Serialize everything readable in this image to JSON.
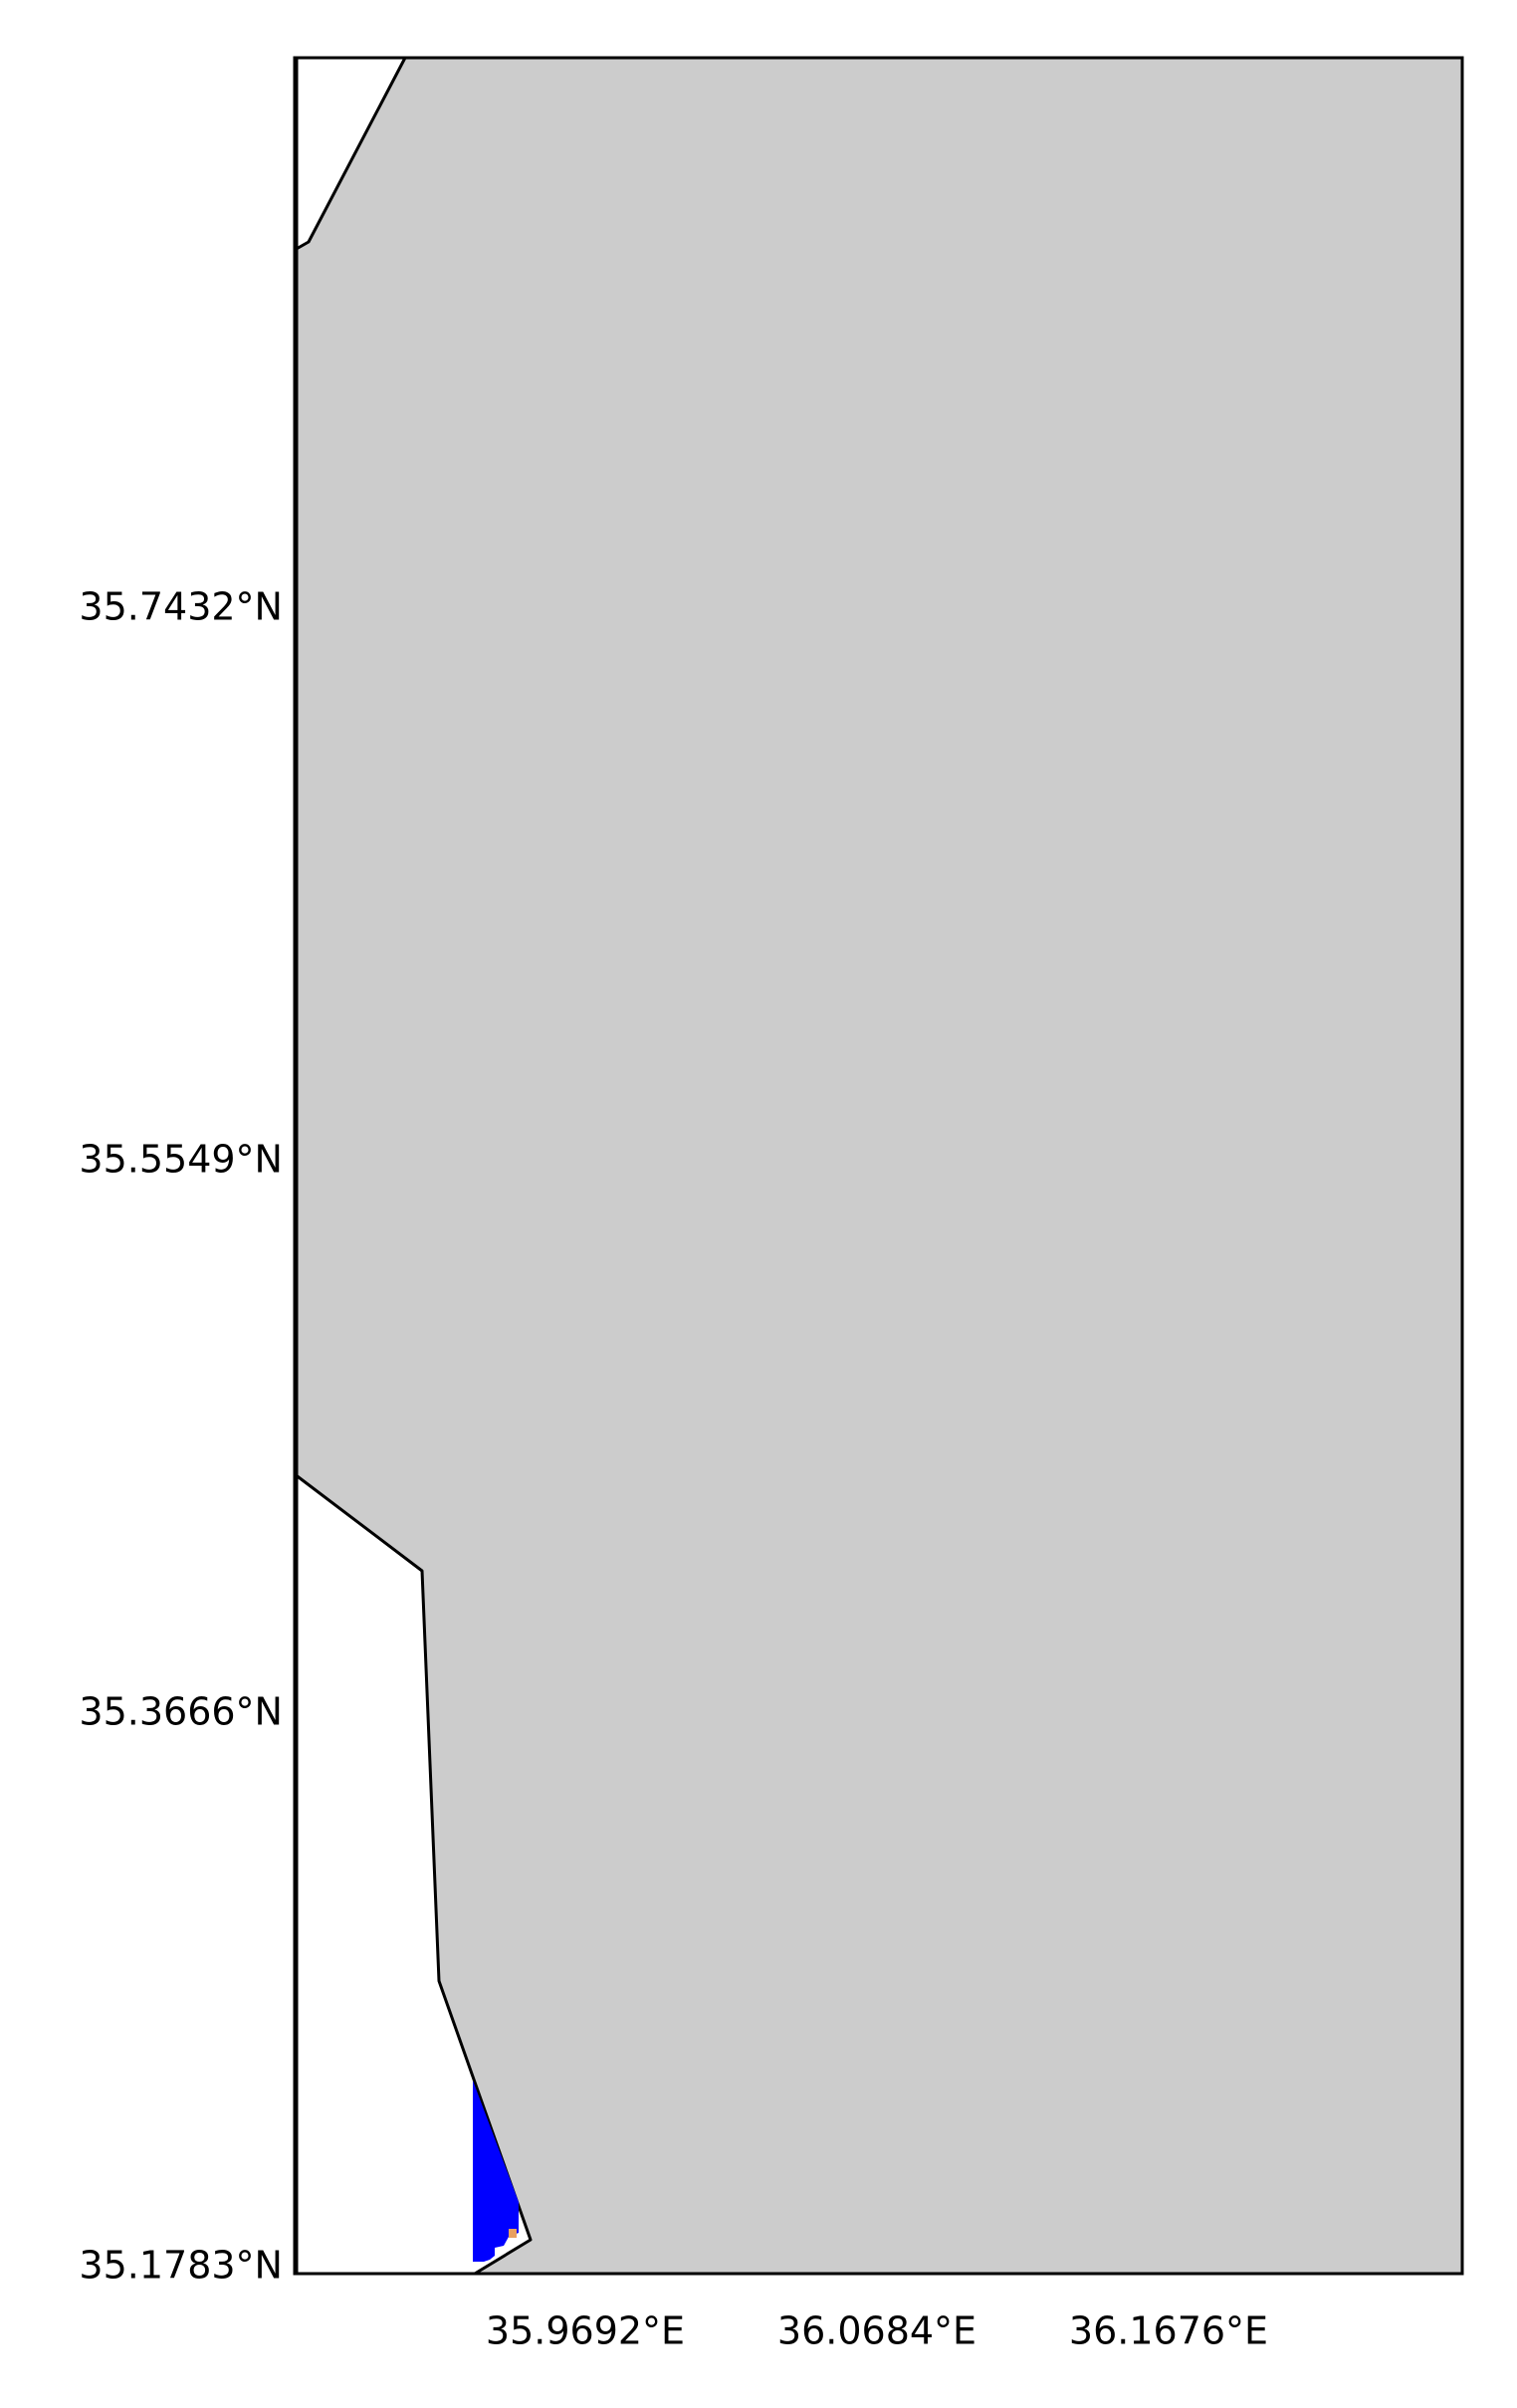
{
  "map": {
    "land_color": "#cccccc",
    "sea_color": "#ffffff",
    "coastline_color": "#000000",
    "data_color": "#0000ff",
    "highlight_color": "#e8a060",
    "lat_ticks": [
      "35.7432°N",
      "35.5549°N",
      "35.3666°N",
      "35.1783°N"
    ],
    "lon_ticks": [
      "35.9692°E",
      "36.0684°E",
      "36.1676°E"
    ]
  }
}
